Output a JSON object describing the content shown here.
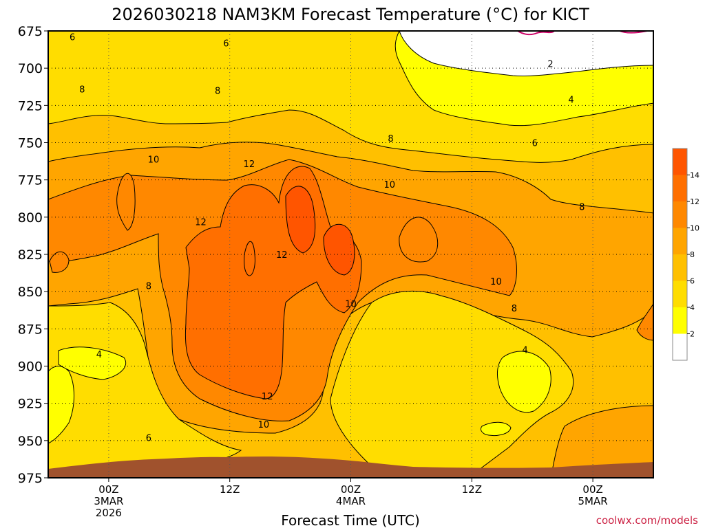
{
  "chart_data": {
    "type": "filled-contour",
    "title": "2026030218 NAM3KM Forecast Temperature (°C) for KICT",
    "xlabel": "Forecast Time (UTC)",
    "ylabel": "",
    "credit": "coolwx.com/models",
    "y_axis": {
      "unit": "hPa",
      "inverted": true,
      "range": [
        975,
        675
      ],
      "ticks": [
        675,
        700,
        725,
        750,
        775,
        800,
        825,
        850,
        875,
        900,
        925,
        950,
        975
      ]
    },
    "x_axis": {
      "range_hours": [
        -5,
        45
      ],
      "ticks": [
        {
          "hour": 0,
          "lines": [
            "00Z",
            "3MAR",
            "2026"
          ]
        },
        {
          "hour": 10,
          "lines": [
            "12Z"
          ]
        },
        {
          "hour": 20,
          "lines": [
            "00Z",
            "4MAR"
          ]
        },
        {
          "hour": 30,
          "lines": [
            "12Z"
          ]
        },
        {
          "hour": 40,
          "lines": [
            "00Z",
            "5MAR"
          ]
        }
      ]
    },
    "grid": true,
    "colorbar": {
      "position": "right",
      "levels": [
        0,
        2,
        4,
        6,
        8,
        10,
        12,
        14,
        16
      ],
      "tick_labels": [
        "2",
        "4",
        "6",
        "8",
        "10",
        "12",
        "14"
      ],
      "colors": [
        "#ffffff",
        "#ffff00",
        "#ffdd00",
        "#ffc000",
        "#ffa500",
        "#ff8800",
        "#ff6f00",
        "#ff5500"
      ]
    },
    "ground_color": "#a0522d",
    "contour_labels": [
      {
        "text": "6",
        "t": -3.0,
        "p": 679
      },
      {
        "text": "6",
        "t": 9.7,
        "p": 683
      },
      {
        "text": "2",
        "t": 36.5,
        "p": 697
      },
      {
        "text": "8",
        "t": -2.2,
        "p": 714
      },
      {
        "text": "8",
        "t": 9.0,
        "p": 715
      },
      {
        "text": "4",
        "t": 38.2,
        "p": 721
      },
      {
        "text": "8",
        "t": 23.3,
        "p": 747
      },
      {
        "text": "6",
        "t": 35.2,
        "p": 750
      },
      {
        "text": "10",
        "t": 3.7,
        "p": 761
      },
      {
        "text": "12",
        "t": 11.6,
        "p": 764
      },
      {
        "text": "10",
        "t": 23.2,
        "p": 778
      },
      {
        "text": "8",
        "t": 39.1,
        "p": 793
      },
      {
        "text": "12",
        "t": 7.6,
        "p": 803
      },
      {
        "text": "12",
        "t": 14.3,
        "p": 825
      },
      {
        "text": "8",
        "t": 3.3,
        "p": 846
      },
      {
        "text": "10",
        "t": 32.0,
        "p": 843
      },
      {
        "text": "10",
        "t": 20.0,
        "p": 858
      },
      {
        "text": "8",
        "t": 33.5,
        "p": 861
      },
      {
        "text": "4",
        "t": -0.8,
        "p": 892
      },
      {
        "text": "4",
        "t": 34.4,
        "p": 889
      },
      {
        "text": "12",
        "t": 13.1,
        "p": 920
      },
      {
        "text": "10",
        "t": 12.8,
        "p": 939
      },
      {
        "text": "6",
        "t": 3.3,
        "p": 948
      }
    ]
  }
}
